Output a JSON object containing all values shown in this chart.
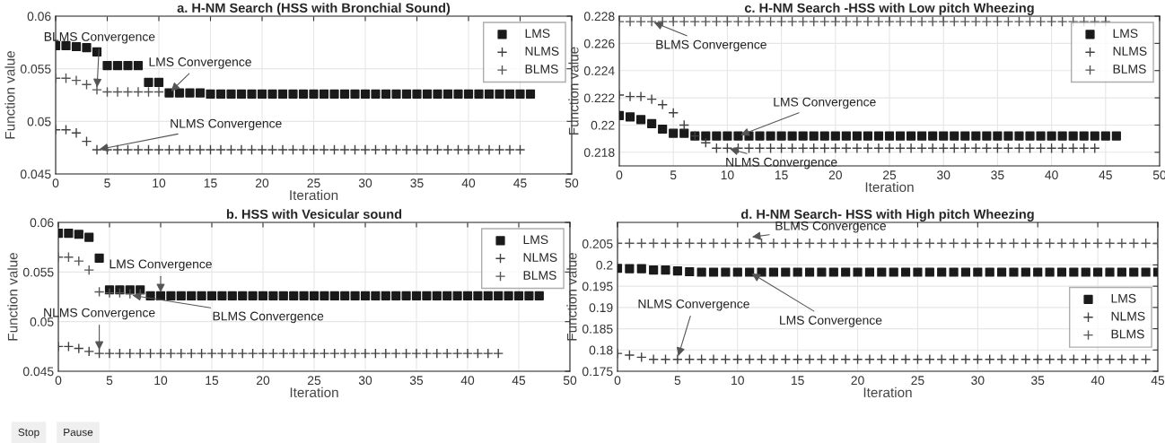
{
  "chart_data": [
    {
      "type": "scatter",
      "title": "a. H-NM Search (HSS with Bronchial Sound)",
      "xlabel": "Iteration",
      "ylabel": "Function value",
      "xlim": [
        0,
        50
      ],
      "xticks": [
        0,
        5,
        10,
        15,
        20,
        25,
        30,
        35,
        40,
        45,
        50
      ],
      "ylim": [
        0.045,
        0.06
      ],
      "yticks": [
        0.045,
        0.05,
        0.055,
        0.06
      ],
      "grid": true,
      "legend": "top right",
      "series": [
        {
          "name": "LMS",
          "color": "#1a1a1a",
          "marker": "square",
          "x": [
            0,
            1,
            2,
            3,
            4,
            5,
            6,
            7,
            8,
            9,
            10,
            11,
            12,
            13,
            14,
            15,
            16,
            17,
            18,
            19,
            20,
            21,
            22,
            23,
            24,
            25,
            26,
            27,
            28,
            29,
            30,
            31,
            32,
            33,
            34,
            35,
            36,
            37,
            38,
            39,
            40,
            41,
            42,
            43,
            44,
            45,
            46
          ],
          "values": [
            0.0572,
            0.0572,
            0.0571,
            0.057,
            0.0566,
            0.0553,
            0.0553,
            0.0553,
            0.0553,
            0.0537,
            0.0537,
            0.0527,
            0.0527,
            0.0527,
            0.0527,
            0.0526,
            0.0526,
            0.0526,
            0.0526,
            0.0526,
            0.0526,
            0.0526,
            0.0526,
            0.0526,
            0.0526,
            0.0526,
            0.0526,
            0.0526,
            0.0526,
            0.0526,
            0.0526,
            0.0526,
            0.0526,
            0.0526,
            0.0526,
            0.0526,
            0.0526,
            0.0526,
            0.0526,
            0.0526,
            0.0526,
            0.0526,
            0.0526,
            0.0526,
            0.0526,
            0.0526,
            0.0526
          ]
        },
        {
          "name": "NLMS",
          "color": "#404040",
          "marker": "cross",
          "x": [
            0,
            1,
            2,
            3,
            4,
            5,
            6,
            7,
            8,
            9,
            10,
            11,
            12,
            13,
            14,
            15,
            16,
            17,
            18,
            19,
            20,
            21,
            22,
            23,
            24,
            25,
            26,
            27,
            28,
            29,
            30,
            31,
            32,
            33,
            34,
            35,
            36,
            37,
            38,
            39,
            40,
            41,
            42,
            43,
            44,
            45
          ],
          "values": [
            0.0492,
            0.0492,
            0.0489,
            0.0481,
            0.0473,
            0.0473,
            0.0473,
            0.0473,
            0.0473,
            0.0473,
            0.0473,
            0.0473,
            0.0473,
            0.0473,
            0.0473,
            0.0473,
            0.0473,
            0.0473,
            0.0473,
            0.0473,
            0.0473,
            0.0473,
            0.0473,
            0.0473,
            0.0473,
            0.0473,
            0.0473,
            0.0473,
            0.0473,
            0.0473,
            0.0473,
            0.0473,
            0.0473,
            0.0473,
            0.0473,
            0.0473,
            0.0473,
            0.0473,
            0.0473,
            0.0473,
            0.0473,
            0.0473,
            0.0473,
            0.0473,
            0.0473,
            0.0473
          ]
        },
        {
          "name": "BLMS",
          "color": "#555555",
          "marker": "cross",
          "x": [
            0,
            1,
            2,
            3,
            4,
            5,
            6,
            7,
            8,
            9,
            10
          ],
          "values": [
            0.0541,
            0.0541,
            0.0539,
            0.0535,
            0.053,
            0.0528,
            0.0528,
            0.0528,
            0.0528,
            0.0528,
            0.0528
          ]
        }
      ],
      "annotations": [
        {
          "text": "BLMS Convergence",
          "x": 4,
          "y": 0.053
        },
        {
          "text": "LMS Convergence",
          "x": 11,
          "y": 0.0527
        },
        {
          "text": "NLMS Convergence",
          "x": 4,
          "y": 0.0473
        }
      ]
    },
    {
      "type": "scatter",
      "title": "c. H-NM Search -HSS with Low pitch Wheezing",
      "xlabel": "Iteration",
      "ylabel": "Function value",
      "xlim": [
        0,
        50
      ],
      "xticks": [
        0,
        5,
        10,
        15,
        20,
        25,
        30,
        35,
        40,
        45,
        50
      ],
      "ylim": [
        0.217,
        0.228
      ],
      "yticks": [
        0.218,
        0.22,
        0.222,
        0.224,
        0.226,
        0.228
      ],
      "grid": true,
      "legend": "top right",
      "series": [
        {
          "name": "LMS",
          "color": "#1a1a1a",
          "marker": "square",
          "x": [
            0,
            1,
            2,
            3,
            4,
            5,
            6,
            7,
            8,
            9,
            10,
            11,
            12,
            13,
            14,
            15,
            16,
            17,
            18,
            19,
            20,
            21,
            22,
            23,
            24,
            25,
            26,
            27,
            28,
            29,
            30,
            31,
            32,
            33,
            34,
            35,
            36,
            37,
            38,
            39,
            40,
            41,
            42,
            43,
            44,
            45,
            46
          ],
          "values": [
            0.2207,
            0.2206,
            0.2204,
            0.2201,
            0.2197,
            0.2194,
            0.2194,
            0.2192,
            0.2192,
            0.2192,
            0.2192,
            0.2192,
            0.2192,
            0.2192,
            0.2192,
            0.2192,
            0.2192,
            0.2192,
            0.2192,
            0.2192,
            0.2192,
            0.2192,
            0.2192,
            0.2192,
            0.2192,
            0.2192,
            0.2192,
            0.2192,
            0.2192,
            0.2192,
            0.2192,
            0.2192,
            0.2192,
            0.2192,
            0.2192,
            0.2192,
            0.2192,
            0.2192,
            0.2192,
            0.2192,
            0.2192,
            0.2192,
            0.2192,
            0.2192,
            0.2192,
            0.2192,
            0.2192
          ]
        },
        {
          "name": "NLMS",
          "color": "#404040",
          "marker": "cross",
          "x": [
            0,
            1,
            2,
            3,
            4,
            5,
            6,
            7,
            8,
            9,
            10,
            11,
            12,
            13,
            14,
            15,
            16,
            17,
            18,
            19,
            20,
            21,
            22,
            23,
            24,
            25,
            26,
            27,
            28,
            29,
            30,
            31,
            32,
            33,
            34,
            35,
            36,
            37,
            38,
            39,
            40,
            41,
            42,
            43,
            44
          ],
          "values": [
            0.2222,
            0.2221,
            0.2221,
            0.2219,
            0.2215,
            0.2209,
            0.22,
            0.2192,
            0.2187,
            0.2183,
            0.2183,
            0.2183,
            0.2183,
            0.2183,
            0.2183,
            0.2183,
            0.2183,
            0.2183,
            0.2183,
            0.2183,
            0.2183,
            0.2183,
            0.2183,
            0.2183,
            0.2183,
            0.2183,
            0.2183,
            0.2183,
            0.2183,
            0.2183,
            0.2183,
            0.2183,
            0.2183,
            0.2183,
            0.2183,
            0.2183,
            0.2183,
            0.2183,
            0.2183,
            0.2183,
            0.2183,
            0.2183,
            0.2183,
            0.2183,
            0.2183
          ]
        },
        {
          "name": "BLMS",
          "color": "#555555",
          "marker": "cross",
          "x": [
            0,
            1,
            2,
            3,
            4,
            5,
            6,
            7,
            8,
            9,
            10,
            11,
            12,
            13,
            14,
            15,
            16,
            17,
            18,
            19,
            20,
            21,
            22,
            23,
            24,
            25,
            26,
            27,
            28,
            29,
            30,
            31,
            32,
            33,
            34,
            35,
            36,
            37,
            38,
            39,
            40,
            41,
            42,
            43,
            44,
            45
          ],
          "values": [
            0.2276,
            0.2276,
            0.2276,
            0.2276,
            0.2276,
            0.2276,
            0.2276,
            0.2276,
            0.2276,
            0.2276,
            0.2276,
            0.2276,
            0.2276,
            0.2276,
            0.2276,
            0.2276,
            0.2276,
            0.2276,
            0.2276,
            0.2276,
            0.2276,
            0.2276,
            0.2276,
            0.2276,
            0.2276,
            0.2276,
            0.2276,
            0.2276,
            0.2276,
            0.2276,
            0.2276,
            0.2276,
            0.2276,
            0.2276,
            0.2276,
            0.2276,
            0.2276,
            0.2276,
            0.2276,
            0.2276,
            0.2276,
            0.2276,
            0.2276,
            0.2276,
            0.2276,
            0.2276
          ]
        }
      ],
      "annotations": [
        {
          "text": "BLMS Convergence",
          "x": 3,
          "y": 0.2276
        },
        {
          "text": "LMS Convergence",
          "x": 11,
          "y": 0.2192
        },
        {
          "text": "NLMS Convergence",
          "x": 10,
          "y": 0.2183
        }
      ]
    },
    {
      "type": "scatter",
      "title": "b. HSS with Vesicular sound",
      "xlabel": "Iteration",
      "ylabel": "Function value",
      "xlim": [
        0,
        50
      ],
      "xticks": [
        0,
        5,
        10,
        15,
        20,
        25,
        30,
        35,
        40,
        45,
        50
      ],
      "ylim": [
        0.045,
        0.06
      ],
      "yticks": [
        0.045,
        0.05,
        0.055,
        0.06
      ],
      "grid": true,
      "legend": "top right",
      "series": [
        {
          "name": "LMS",
          "color": "#1a1a1a",
          "marker": "square",
          "x": [
            0,
            1,
            2,
            3,
            4,
            5,
            6,
            7,
            8,
            9,
            10,
            11,
            12,
            13,
            14,
            15,
            16,
            17,
            18,
            19,
            20,
            21,
            22,
            23,
            24,
            25,
            26,
            27,
            28,
            29,
            30,
            31,
            32,
            33,
            34,
            35,
            36,
            37,
            38,
            39,
            40,
            41,
            42,
            43,
            44,
            45,
            46,
            47
          ],
          "values": [
            0.0589,
            0.0589,
            0.0588,
            0.0585,
            0.0564,
            0.0532,
            0.0532,
            0.0532,
            0.0532,
            0.0526,
            0.0526,
            0.0526,
            0.0526,
            0.0526,
            0.0526,
            0.0526,
            0.0526,
            0.0526,
            0.0526,
            0.0526,
            0.0526,
            0.0526,
            0.0526,
            0.0526,
            0.0526,
            0.0526,
            0.0526,
            0.0526,
            0.0526,
            0.0526,
            0.0526,
            0.0526,
            0.0526,
            0.0526,
            0.0526,
            0.0526,
            0.0526,
            0.0526,
            0.0526,
            0.0526,
            0.0526,
            0.0526,
            0.0526,
            0.0526,
            0.0526,
            0.0526,
            0.0526,
            0.0526
          ]
        },
        {
          "name": "NLMS",
          "color": "#404040",
          "marker": "cross",
          "x": [
            0,
            1,
            2,
            3,
            4,
            5,
            6,
            7,
            8,
            9,
            10,
            11,
            12,
            13,
            14,
            15,
            16,
            17,
            18,
            19,
            20,
            21,
            22,
            23,
            24,
            25,
            26,
            27,
            28,
            29,
            30,
            31,
            32,
            33,
            34,
            35,
            36,
            37,
            38,
            39,
            40,
            41,
            42,
            43
          ],
          "values": [
            0.0475,
            0.0475,
            0.0473,
            0.047,
            0.0468,
            0.0468,
            0.0468,
            0.0468,
            0.0468,
            0.0468,
            0.0468,
            0.0468,
            0.0468,
            0.0468,
            0.0468,
            0.0468,
            0.0468,
            0.0468,
            0.0468,
            0.0468,
            0.0468,
            0.0468,
            0.0468,
            0.0468,
            0.0468,
            0.0468,
            0.0468,
            0.0468,
            0.0468,
            0.0468,
            0.0468,
            0.0468,
            0.0468,
            0.0468,
            0.0468,
            0.0468,
            0.0468,
            0.0468,
            0.0468,
            0.0468,
            0.0468,
            0.0468,
            0.0468,
            0.0468
          ]
        },
        {
          "name": "BLMS",
          "color": "#555555",
          "marker": "cross",
          "x": [
            0,
            1,
            2,
            3,
            4,
            5,
            6,
            7,
            8
          ],
          "values": [
            0.0565,
            0.0565,
            0.0561,
            0.0552,
            0.053,
            0.0529,
            0.0529,
            0.0528,
            0.0528
          ]
        }
      ],
      "annotations": [
        {
          "text": "LMS Convergence",
          "x": 10,
          "y": 0.0527
        },
        {
          "text": "NLMS Convergence",
          "x": 4,
          "y": 0.0469
        },
        {
          "text": "BLMS Convergence",
          "x": 7,
          "y": 0.0527
        },
        "Stop",
        "Pause"
      ]
    },
    {
      "type": "scatter",
      "title": "d. H-NM Search- HSS with High pitch Wheezing",
      "xlabel": "Iteration",
      "ylabel": "Function value",
      "xlim": [
        0,
        45
      ],
      "xticks": [
        0,
        5,
        10,
        15,
        20,
        25,
        30,
        35,
        40,
        45
      ],
      "ylim": [
        0.175,
        0.21
      ],
      "yticks": [
        0.175,
        0.18,
        0.185,
        0.19,
        0.195,
        0.2,
        0.205
      ],
      "grid": true,
      "legend": "bottom right",
      "series": [
        {
          "name": "LMS",
          "color": "#1a1a1a",
          "marker": "square",
          "x": [
            0,
            1,
            2,
            3,
            4,
            5,
            6,
            7,
            8,
            9,
            10,
            11,
            12,
            13,
            14,
            15,
            16,
            17,
            18,
            19,
            20,
            21,
            22,
            23,
            24,
            25,
            26,
            27,
            28,
            29,
            30,
            31,
            32,
            33,
            34,
            35,
            36,
            37,
            38,
            39,
            40,
            41,
            42,
            43,
            44,
            45
          ],
          "values": [
            0.1992,
            0.1991,
            0.1991,
            0.1988,
            0.1988,
            0.1986,
            0.1984,
            0.1983,
            0.1983,
            0.1983,
            0.1983,
            0.1983,
            0.1983,
            0.1983,
            0.1983,
            0.1983,
            0.1983,
            0.1983,
            0.1983,
            0.1983,
            0.1983,
            0.1983,
            0.1983,
            0.1983,
            0.1983,
            0.1983,
            0.1983,
            0.1983,
            0.1983,
            0.1983,
            0.1983,
            0.1983,
            0.1983,
            0.1983,
            0.1983,
            0.1983,
            0.1983,
            0.1983,
            0.1983,
            0.1983,
            0.1983,
            0.1983,
            0.1983,
            0.1983,
            0.1983,
            0.1983
          ]
        },
        {
          "name": "NLMS",
          "color": "#404040",
          "marker": "cross",
          "x": [
            0,
            1,
            2,
            3,
            4,
            5,
            6,
            7,
            8,
            9,
            10,
            11,
            12,
            13,
            14,
            15,
            16,
            17,
            18,
            19,
            20,
            21,
            22,
            23,
            24,
            25,
            26,
            27,
            28,
            29,
            30,
            31,
            32,
            33,
            34,
            35,
            36,
            37,
            38,
            39,
            40,
            41,
            42,
            43,
            44
          ],
          "values": [
            0.1792,
            0.1788,
            0.1783,
            0.1778,
            0.1778,
            0.1778,
            0.1778,
            0.1778,
            0.1778,
            0.1778,
            0.1778,
            0.1778,
            0.1778,
            0.1778,
            0.1778,
            0.1778,
            0.1778,
            0.1778,
            0.1778,
            0.1778,
            0.1778,
            0.1778,
            0.1778,
            0.1778,
            0.1778,
            0.1778,
            0.1778,
            0.1778,
            0.1778,
            0.1778,
            0.1778,
            0.1778,
            0.1778,
            0.1778,
            0.1778,
            0.1778,
            0.1778,
            0.1778,
            0.1778,
            0.1778,
            0.1778,
            0.1778,
            0.1778,
            0.1778,
            0.1778
          ]
        },
        {
          "name": "BLMS",
          "color": "#555555",
          "marker": "cross",
          "x": [
            0,
            1,
            2,
            3,
            4,
            5,
            6,
            7,
            8,
            9,
            10,
            11,
            12,
            13,
            14,
            15,
            16,
            17,
            18,
            19,
            20,
            21,
            22,
            23,
            24,
            25,
            26,
            27,
            28,
            29,
            30,
            31,
            32,
            33,
            34,
            35,
            36,
            37,
            38,
            39,
            40,
            41,
            42,
            43,
            44,
            45
          ],
          "values": [
            0.2051,
            0.2051,
            0.2051,
            0.2051,
            0.2051,
            0.2051,
            0.2051,
            0.2051,
            0.2051,
            0.2051,
            0.2051,
            0.2051,
            0.2051,
            0.2051,
            0.2051,
            0.2051,
            0.2051,
            0.2051,
            0.2051,
            0.2051,
            0.2051,
            0.2051,
            0.2051,
            0.2051,
            0.2051,
            0.2051,
            0.2051,
            0.2051,
            0.2051,
            0.2051,
            0.2051,
            0.2051,
            0.2051,
            0.2051,
            0.2051,
            0.2051,
            0.2051,
            0.2051,
            0.2051,
            0.2051,
            0.2051,
            0.2051,
            0.2051,
            0.2051,
            0.2051,
            0.2051
          ]
        }
      ],
      "annotations": [
        {
          "text": "BLMS Convergence",
          "x": 11,
          "y": 0.2065
        },
        {
          "text": "LMS Convergence",
          "x": 11,
          "y": 0.1983
        },
        {
          "text": "NLMS Convergence",
          "x": 5,
          "y": 0.178
        }
      ]
    }
  ]
}
